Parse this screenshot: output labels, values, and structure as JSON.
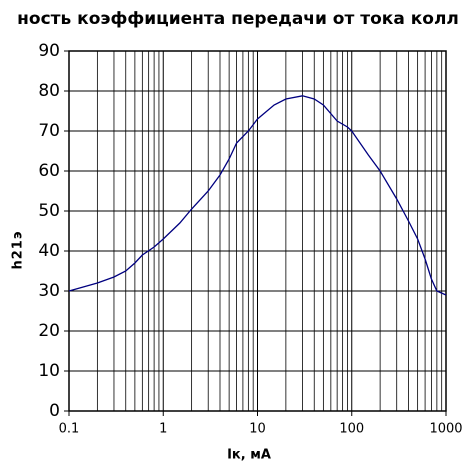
{
  "chart_data": {
    "type": "line",
    "title": "ность коэффициента передачи от тока колл",
    "x_label": "Iк, мА",
    "y_label": "h21э",
    "x_log": true,
    "xminor": true,
    "grid": true,
    "xlim": [
      0.1,
      1000
    ],
    "xticks": [
      0.1,
      1,
      10,
      100,
      1000
    ],
    "ylim": [
      0,
      90
    ],
    "yticks": [
      0,
      10,
      20,
      30,
      40,
      50,
      60,
      70,
      80,
      90
    ],
    "x": [
      0.1,
      0.2,
      0.3,
      0.4,
      0.5,
      0.6,
      0.8,
      1,
      1.5,
      2,
      3,
      4,
      5,
      6,
      8,
      10,
      15,
      20,
      30,
      40,
      50,
      70,
      90,
      100,
      150,
      200,
      300,
      400,
      500,
      600,
      700,
      800,
      1000
    ],
    "series": [
      {
        "color": "#000080",
        "values": [
          30,
          32,
          33.5,
          35,
          37,
          39,
          41,
          43,
          47,
          50.5,
          55,
          59,
          63,
          67,
          70,
          73,
          76.5,
          78,
          78.8,
          78,
          76.5,
          72.5,
          71,
          70,
          64,
          60,
          53,
          47.5,
          43,
          38,
          33,
          30,
          29
        ]
      }
    ]
  }
}
